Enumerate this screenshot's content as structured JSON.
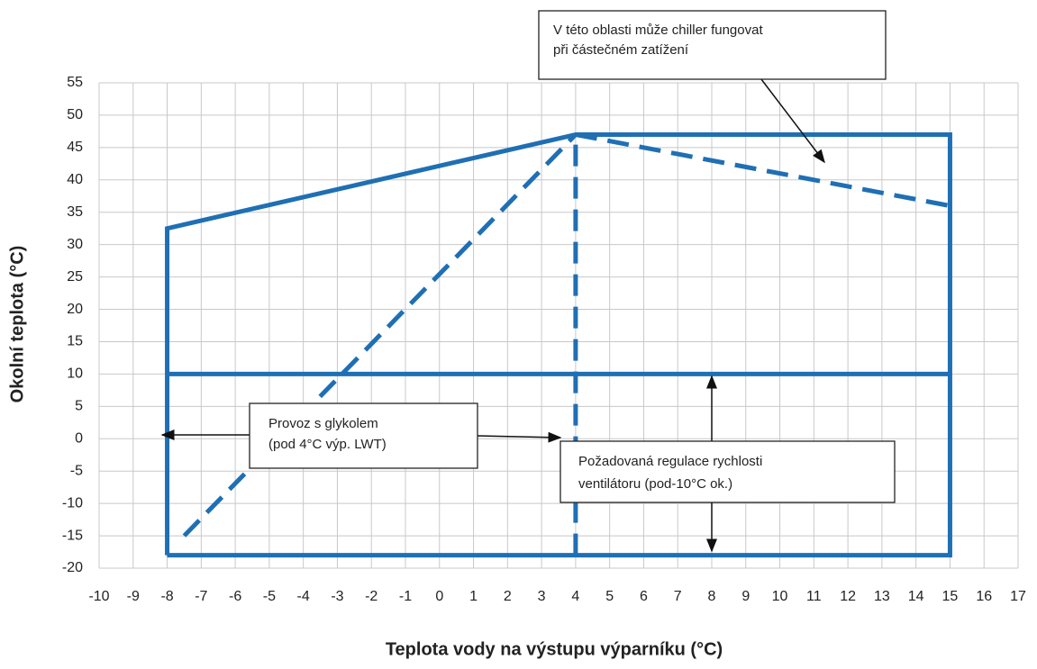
{
  "chart_data": {
    "type": "line",
    "xlabel": "Teplota vody na výstupu výparníku (°C)",
    "ylabel": "Okolní teplota (°C)",
    "xlim": [
      -10,
      17
    ],
    "xticks": [
      -10,
      -9,
      -8,
      -7,
      -6,
      -5,
      -4,
      -3,
      -2,
      -1,
      0,
      1,
      2,
      3,
      4,
      5,
      6,
      7,
      8,
      9,
      10,
      11,
      12,
      13,
      14,
      15,
      16,
      17
    ],
    "ylim": [
      -20,
      55
    ],
    "yticks": [
      -20,
      -15,
      -10,
      -5,
      0,
      5,
      10,
      15,
      20,
      25,
      30,
      35,
      40,
      45,
      50,
      55
    ],
    "grid": true,
    "series": [
      {
        "color": "#1f6fb4",
        "style": "solid",
        "x": [
          -8,
          -8,
          4,
          15,
          15,
          -8
        ],
        "values": [
          -18,
          32.5,
          47,
          47,
          -18,
          -18
        ]
      },
      {
        "color": "#1f6fb4",
        "style": "solid",
        "x": [
          -8,
          15
        ],
        "values": [
          10,
          10
        ]
      },
      {
        "color": "#1f6fb4",
        "style": "dashed",
        "x": [
          4,
          4
        ],
        "values": [
          -18,
          47
        ]
      },
      {
        "color": "#1f6fb4",
        "style": "dashed",
        "x": [
          -7.5,
          4
        ],
        "values": [
          -15,
          47
        ]
      },
      {
        "color": "#1f6fb4",
        "style": "dashed",
        "x": [
          4,
          15
        ],
        "values": [
          47,
          36
        ]
      }
    ],
    "annotations": [
      {
        "lines": [
          "V této oblasti může chiller fungovat",
          "při částečném zatížení"
        ]
      },
      {
        "lines": [
          "Provoz s glykolem",
          "(pod 4°C výp. LWT)"
        ]
      },
      {
        "lines": [
          "Požadovaná regulace rychlosti",
          "ventilátoru (pod-10°C ok.)"
        ]
      }
    ]
  }
}
